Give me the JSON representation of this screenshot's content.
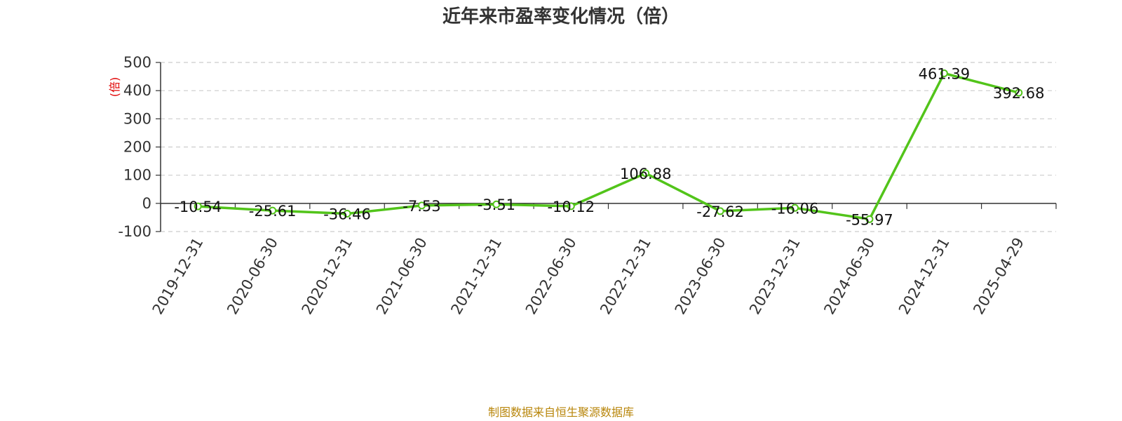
{
  "chart_data": {
    "type": "line",
    "title": "近年来市盈率变化情况（倍）",
    "ylabel": "(倍)",
    "xlabel": "",
    "categories": [
      "2019-12-31",
      "2020-06-30",
      "2020-12-31",
      "2021-06-30",
      "2021-12-31",
      "2022-06-30",
      "2022-12-31",
      "2023-06-30",
      "2023-12-31",
      "2024-06-30",
      "2024-12-31",
      "2025-04-29"
    ],
    "values": [
      -10.54,
      -25.61,
      -36.46,
      -7.53,
      -3.51,
      -10.12,
      106.88,
      -27.62,
      -16.06,
      -55.97,
      461.39,
      392.68
    ],
    "data_labels": [
      "-10.54",
      "-25.61",
      "-36.46",
      "-7.53",
      "-3.51",
      "-10.12",
      "106.88",
      "-27.62",
      "-16.06",
      "-55.97",
      "461.39",
      "392.68"
    ],
    "ylim": [
      -100,
      500
    ],
    "yticks": [
      -100,
      0,
      100,
      200,
      300,
      400,
      500
    ],
    "grid": true,
    "legend": "none"
  },
  "colors": {
    "line": "#52c41a",
    "text": "#333333",
    "grid": "#cccccc",
    "ylabel": "#e00000",
    "source": "#b8860b"
  },
  "footer": {
    "source_text": "制图数据来自恒生聚源数据库"
  }
}
